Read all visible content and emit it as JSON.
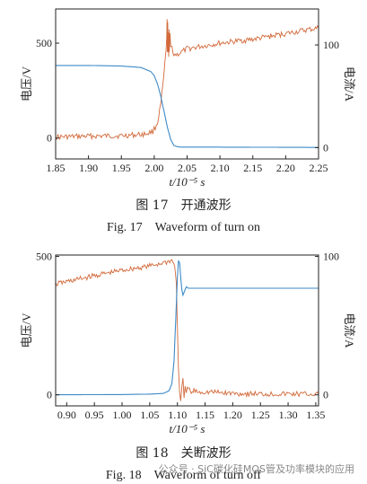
{
  "figures": [
    {
      "caption_cn": "图 17　开通波形",
      "caption_en": "Fig. 17　Waveform of turn on"
    },
    {
      "caption_cn": "图 18　关断波形",
      "caption_en": "Fig. 18　Waveform of turn off"
    }
  ],
  "watermark": "公众号 · SiC碳化硅MOS管及功率模块的应用",
  "colors": {
    "voltage": "#d2693a",
    "current": "#3d8ac7",
    "axis": "#222222"
  },
  "chart_data": [
    {
      "type": "line",
      "xlabel": "t/10⁻⁵ s",
      "ylabel_left": "电压/V",
      "ylabel_right": "电流/A",
      "xlim": [
        1.85,
        2.25
      ],
      "ylim_left": [
        -110,
        680
      ],
      "ylim_right": [
        -11,
        135
      ],
      "x_ticks": [
        "1.85",
        "1.90",
        "1.95",
        "2.00",
        "2.05",
        "2.10",
        "2.15",
        "2.20",
        "2.25"
      ],
      "y_left_ticks": [
        0,
        500
      ],
      "y_right_ticks": [
        0,
        100
      ],
      "series": [
        {
          "axis": "left",
          "color": "#d2693a",
          "x": [
            1.85,
            1.9,
            1.95,
            1.985,
            1.998,
            2.005,
            2.01,
            2.013,
            2.016,
            2.018,
            2.019,
            2.0195,
            2.02,
            2.0205,
            2.021,
            2.0215,
            2.022,
            2.0225,
            2.023,
            2.024,
            2.025,
            2.027,
            2.03,
            2.035,
            2.04,
            2.05,
            2.1,
            2.15,
            2.2,
            2.25
          ],
          "y": [
            5,
            10,
            12,
            20,
            35,
            80,
            180,
            270,
            380,
            460,
            520,
            620,
            460,
            600,
            440,
            570,
            430,
            560,
            450,
            540,
            480,
            480,
            440,
            440,
            450,
            470,
            500,
            520,
            550,
            580
          ]
        },
        {
          "axis": "right",
          "color": "#3d8ac7",
          "x": [
            1.85,
            1.9,
            1.95,
            1.98,
            1.995,
            2.0,
            2.005,
            2.01,
            2.015,
            2.02,
            2.025,
            2.03,
            2.035,
            2.04,
            2.1,
            2.2,
            2.25
          ],
          "y": [
            80,
            80,
            79.5,
            78,
            74,
            70,
            62,
            50,
            35,
            20,
            8,
            2,
            1,
            0.5,
            0.5,
            0.3,
            0.2
          ]
        }
      ]
    },
    {
      "type": "line",
      "xlabel": "t/10⁻⁵ s",
      "ylabel_left": "电压/V",
      "ylabel_right": "电流/A",
      "xlim": [
        0.88,
        1.355
      ],
      "ylim_left": [
        -40,
        505
      ],
      "ylim_right": [
        -8,
        101
      ],
      "x_ticks": [
        "0.90",
        "0.95",
        "1.00",
        "1.05",
        "1.10",
        "1.15",
        "1.20",
        "1.25",
        "1.30",
        "1.35"
      ],
      "y_left_ticks": [
        0,
        500
      ],
      "y_right_ticks": [
        0,
        100
      ],
      "series": [
        {
          "axis": "left",
          "color": "#d2693a",
          "x": [
            0.88,
            0.95,
            1.0,
            1.05,
            1.08,
            1.09,
            1.095,
            1.098,
            1.1,
            1.102,
            1.104,
            1.106,
            1.108,
            1.11,
            1.112,
            1.114,
            1.116,
            1.12,
            1.125,
            1.13,
            1.14,
            1.16,
            1.2,
            1.25,
            1.3,
            1.355
          ],
          "y": [
            400,
            430,
            450,
            465,
            480,
            485,
            470,
            400,
            250,
            100,
            0,
            -30,
            20,
            60,
            -20,
            40,
            10,
            25,
            5,
            15,
            10,
            10,
            5,
            3,
            3,
            2
          ]
        },
        {
          "axis": "right",
          "color": "#3d8ac7",
          "x": [
            0.88,
            1.0,
            1.05,
            1.075,
            1.085,
            1.09,
            1.094,
            1.097,
            1.1,
            1.102,
            1.104,
            1.106,
            1.108,
            1.11,
            1.113,
            1.116,
            1.12,
            1.13,
            1.2,
            1.3,
            1.355
          ],
          "y": [
            0,
            0.2,
            0.5,
            1,
            3,
            8,
            25,
            55,
            85,
            97,
            95,
            85,
            76,
            72,
            75,
            78,
            77,
            77,
            77,
            77,
            77
          ]
        }
      ]
    }
  ]
}
